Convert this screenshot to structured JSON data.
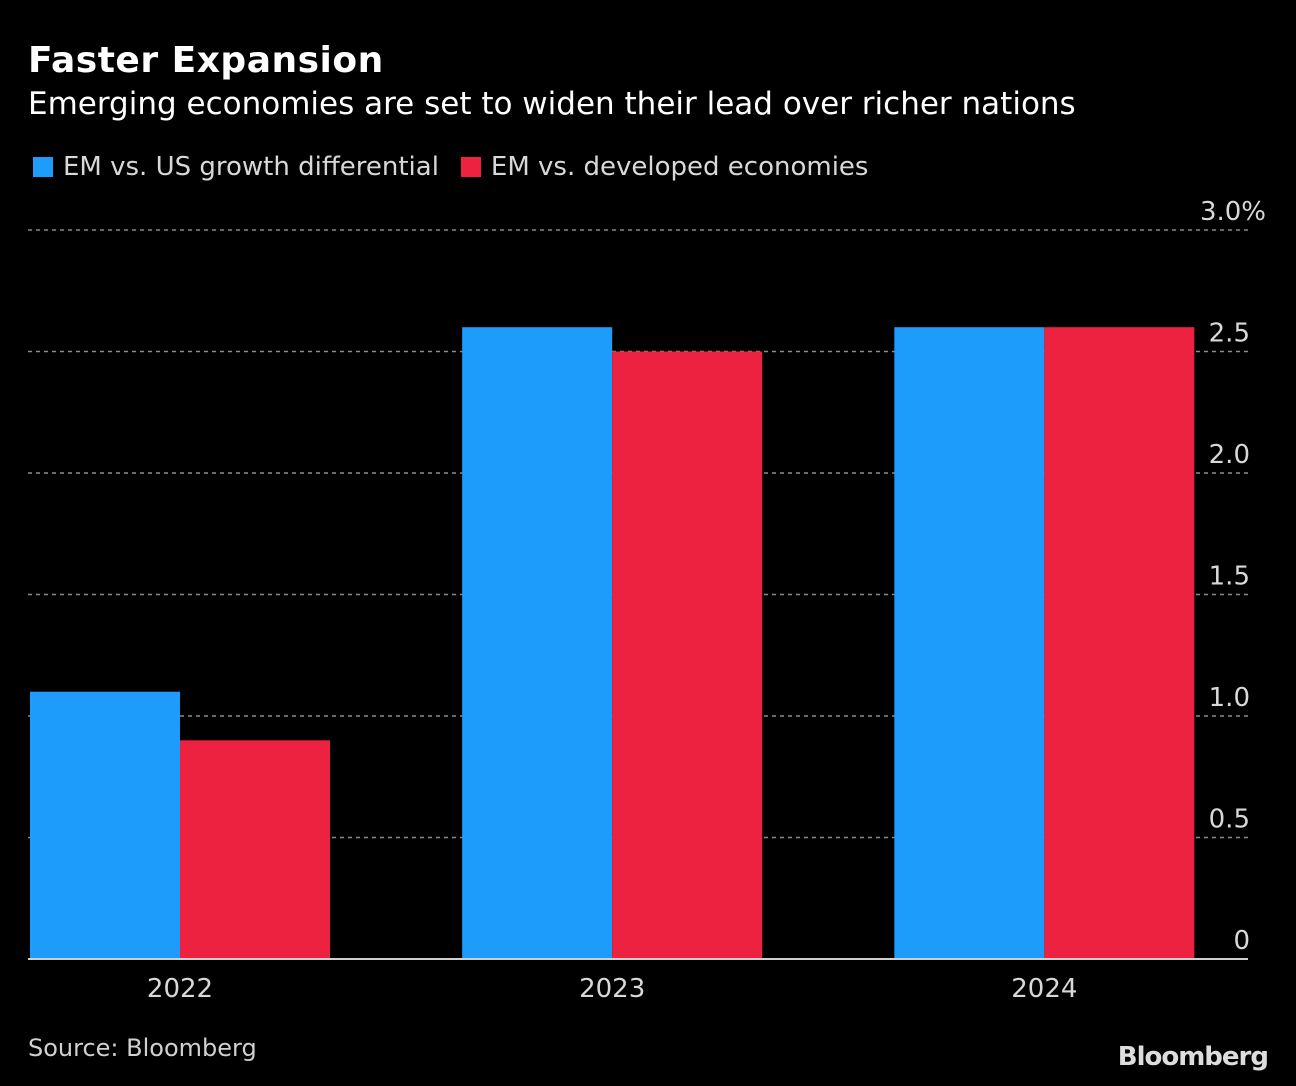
{
  "header": {
    "title": "Faster Expansion",
    "subtitle": "Emerging economies are set to widen their lead over richer nations"
  },
  "footer": {
    "source": "Source: Bloomberg",
    "logo": "Bloomberg"
  },
  "chart_data": {
    "type": "bar",
    "title": "Faster Expansion",
    "subtitle": "Emerging economies are set to widen their lead over richer nations",
    "xlabel": "",
    "ylabel": "",
    "categories": [
      "2022",
      "2023",
      "2024"
    ],
    "series": [
      {
        "name": "EM vs. US growth differential",
        "color": "#1e9cfc",
        "values": [
          1.1,
          2.6,
          2.6
        ]
      },
      {
        "name": "EM vs. developed economies",
        "color": "#ec2240",
        "values": [
          0.9,
          2.5,
          2.6
        ]
      }
    ],
    "ylim": [
      0,
      3.0
    ],
    "yticks": [
      0,
      0.5,
      1.0,
      1.5,
      2.0,
      2.5,
      3.0
    ],
    "ytick_labels": [
      "0",
      "0.5",
      "1.0",
      "1.5",
      "2.0",
      "2.5",
      "3.0%"
    ],
    "y_axis_side": "right",
    "grid": true,
    "legend_position": "top-left"
  }
}
